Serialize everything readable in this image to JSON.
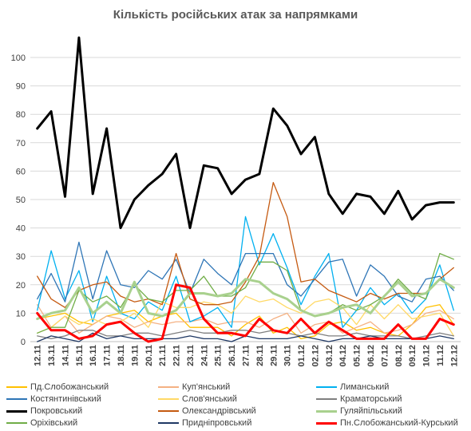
{
  "chart_data": {
    "type": "line",
    "title": "Кількість російських атак за напрямками",
    "xlabel": "",
    "ylabel": "",
    "ylim": [
      0,
      100
    ],
    "yticks": [
      0,
      10,
      20,
      30,
      40,
      50,
      60,
      70,
      80,
      90,
      100
    ],
    "grid": true,
    "legend_position": "bottom",
    "x": [
      "12.11",
      "13.11",
      "14.11",
      "15.11",
      "16.11",
      "17.11",
      "18.11",
      "19.11",
      "20.11",
      "21.11",
      "22.11",
      "23.11",
      "24.11",
      "25.11",
      "26.11",
      "27.11",
      "28.11",
      "29.11",
      "30.11",
      "01.12",
      "02.12",
      "03.12",
      "04.12",
      "05.12",
      "06.12",
      "07.12",
      "08.12",
      "09.12",
      "10.12",
      "11.12",
      "12.12"
    ],
    "series": [
      {
        "name": "Пд.Слобожанський",
        "color": "#ffc000",
        "width": 1.3,
        "values": [
          8,
          9,
          10,
          7,
          6,
          9,
          10,
          11,
          7,
          9,
          10,
          5,
          5,
          5,
          2,
          6,
          9,
          3,
          5,
          1,
          2,
          6,
          7,
          4,
          5,
          3,
          2,
          6,
          12,
          13,
          6
        ]
      },
      {
        "name": "Куп'янський",
        "color": "#f4b183",
        "width": 1.3,
        "values": [
          13,
          5,
          9,
          3,
          6,
          9,
          8,
          5,
          7,
          6,
          7,
          7,
          8,
          6,
          7,
          7,
          5,
          8,
          10,
          3,
          6,
          7,
          3,
          5,
          7,
          3,
          4,
          6,
          10,
          11,
          8
        ]
      },
      {
        "name": "Лиманський",
        "color": "#00b0f0",
        "width": 1.3,
        "values": [
          11,
          32,
          15,
          25,
          7,
          23,
          10,
          8,
          14,
          11,
          23,
          7,
          9,
          12,
          5,
          44,
          27,
          38,
          26,
          13,
          23,
          31,
          5,
          11,
          19,
          13,
          17,
          10,
          15,
          27,
          11
        ]
      },
      {
        "name": "Костянтинівський",
        "color": "#2e75b6",
        "width": 1.3,
        "values": [
          15,
          24,
          14,
          35,
          15,
          32,
          20,
          19,
          25,
          22,
          29,
          17,
          29,
          24,
          20,
          31,
          31,
          31,
          20,
          16,
          22,
          28,
          29,
          16,
          27,
          23,
          16,
          14,
          22,
          23,
          18
        ]
      },
      {
        "name": "Слов'янський",
        "color": "#ffd966",
        "width": 1.3,
        "values": [
          3,
          5,
          9,
          6,
          8,
          6,
          7,
          10,
          5,
          14,
          12,
          12,
          14,
          13,
          10,
          16,
          14,
          15,
          12,
          10,
          14,
          15,
          12,
          6,
          13,
          8,
          13,
          8,
          9,
          10,
          2
        ]
      },
      {
        "name": "Краматорський",
        "color": "#7f7f7f",
        "width": 1.3,
        "values": [
          2,
          1,
          2,
          4,
          4,
          2,
          2,
          3,
          3,
          2,
          3,
          4,
          3,
          3,
          4,
          4,
          3,
          4,
          3,
          2,
          3,
          2,
          2,
          3,
          2,
          2,
          2,
          1,
          2,
          3,
          2
        ]
      },
      {
        "name": "Покровський",
        "color": "#000000",
        "width": 3,
        "values": [
          75,
          81,
          51,
          107,
          52,
          75,
          40,
          50,
          55,
          59,
          66,
          40,
          62,
          61,
          52,
          57,
          59,
          82,
          76,
          66,
          72,
          52,
          45,
          52,
          51,
          45,
          53,
          43,
          48,
          49,
          49
        ]
      },
      {
        "name": "Олександрівський",
        "color": "#c55a11",
        "width": 1.3,
        "values": [
          23,
          15,
          12,
          18,
          20,
          21,
          16,
          14,
          15,
          13,
          31,
          15,
          13,
          13,
          14,
          21,
          30,
          56,
          44,
          21,
          22,
          18,
          16,
          14,
          17,
          15,
          17,
          17,
          17,
          22,
          26
        ]
      },
      {
        "name": "Гуляйпільський",
        "color": "#a9d18e",
        "width": 3,
        "values": [
          8,
          10,
          11,
          19,
          10,
          14,
          10,
          21,
          10,
          9,
          11,
          17,
          17,
          16,
          17,
          22,
          21,
          17,
          15,
          11,
          9,
          10,
          12,
          13,
          10,
          16,
          21,
          16,
          17,
          22,
          19
        ]
      },
      {
        "name": "Оріхівський",
        "color": "#70ad47",
        "width": 1.3,
        "values": [
          3,
          5,
          5,
          18,
          14,
          16,
          12,
          20,
          15,
          14,
          18,
          18,
          23,
          16,
          16,
          19,
          28,
          28,
          25,
          11,
          9,
          10,
          13,
          11,
          13,
          16,
          22,
          17,
          15,
          31,
          29
        ]
      },
      {
        "name": "Придніпровський",
        "color": "#1f3864",
        "width": 1.3,
        "values": [
          0,
          2,
          1,
          0,
          3,
          1,
          2,
          1,
          1,
          1,
          1,
          2,
          1,
          1,
          0,
          2,
          1,
          1,
          1,
          2,
          1,
          0,
          1,
          1,
          2,
          1,
          1,
          1,
          1,
          2,
          1
        ]
      },
      {
        "name": "Пн.Слобожанський-Курський",
        "color": "#ff0000",
        "width": 3,
        "values": [
          10,
          4,
          4,
          1,
          2,
          6,
          7,
          3,
          0,
          1,
          20,
          19,
          8,
          3,
          3,
          2,
          8,
          4,
          3,
          8,
          3,
          7,
          4,
          1,
          1,
          1,
          6,
          1,
          1,
          8,
          6
        ]
      }
    ]
  }
}
